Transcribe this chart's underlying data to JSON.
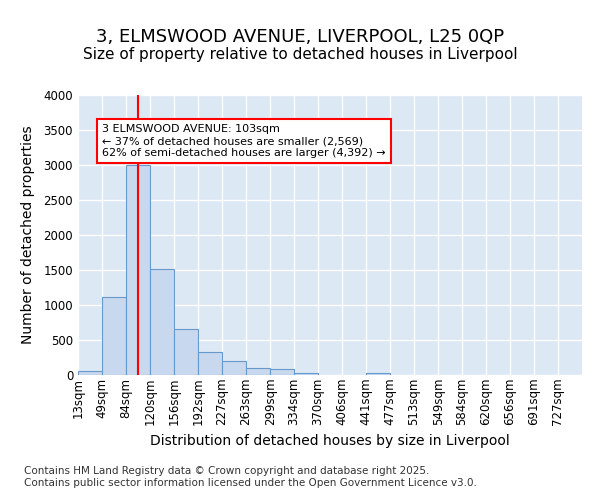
{
  "title_line1": "3, ELMSWOOD AVENUE, LIVERPOOL, L25 0QP",
  "title_line2": "Size of property relative to detached houses in Liverpool",
  "xlabel": "Distribution of detached houses by size in Liverpool",
  "ylabel": "Number of detached properties",
  "bin_labels": [
    "13sqm",
    "49sqm",
    "84sqm",
    "120sqm",
    "156sqm",
    "192sqm",
    "227sqm",
    "263sqm",
    "299sqm",
    "334sqm",
    "370sqm",
    "406sqm",
    "441sqm",
    "477sqm",
    "513sqm",
    "549sqm",
    "584sqm",
    "620sqm",
    "656sqm",
    "691sqm",
    "727sqm"
  ],
  "bar_values": [
    60,
    1120,
    3000,
    1520,
    660,
    330,
    200,
    100,
    80,
    30,
    0,
    0,
    30,
    0,
    0,
    0,
    0,
    0,
    0,
    0,
    0
  ],
  "bar_color": "#c8d8ee",
  "bar_edgecolor": "#6699cc",
  "vline_x": 103,
  "vline_color": "red",
  "annotation_text": "3 ELMSWOOD AVENUE: 103sqm\n← 37% of detached houses are smaller (2,569)\n62% of semi-detached houses are larger (4,392) →",
  "annotation_box_color": "white",
  "annotation_box_edgecolor": "red",
  "ylim": [
    0,
    4000
  ],
  "bin_width": 36,
  "footnote": "Contains HM Land Registry data © Crown copyright and database right 2025.\nContains public sector information licensed under the Open Government Licence v3.0.",
  "fig_background_color": "#ffffff",
  "plot_background": "#dde8f5",
  "grid_color": "#ffffff",
  "title_fontsize": 13,
  "subtitle_fontsize": 11,
  "label_fontsize": 10,
  "tick_fontsize": 8.5,
  "footnote_fontsize": 7.5
}
